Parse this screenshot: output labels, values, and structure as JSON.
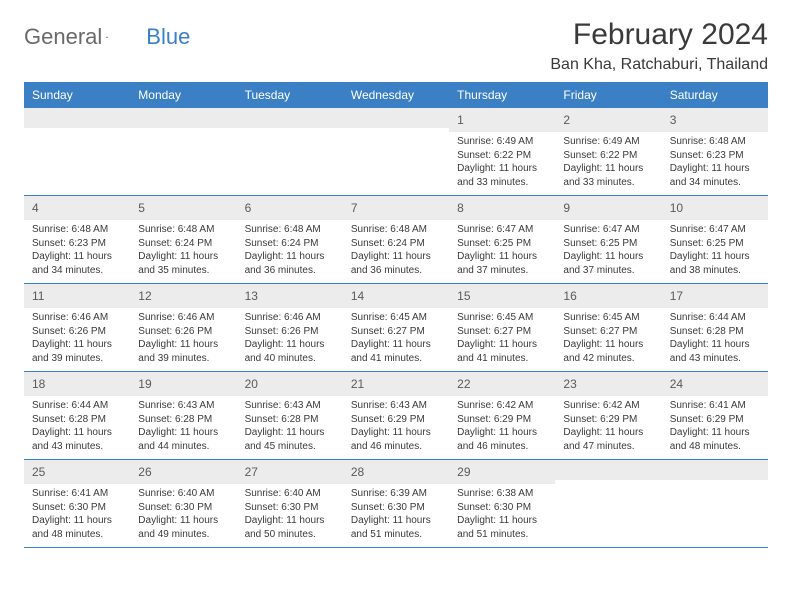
{
  "brand": {
    "name_part1": "General",
    "name_part2": "Blue"
  },
  "title": "February 2024",
  "location": "Ban Kha, Ratchaburi, Thailand",
  "colors": {
    "header_bg": "#3b7fc4",
    "header_text": "#ffffff",
    "daynum_bg": "#ececec",
    "border": "#3b7fc4",
    "text": "#3a3a3a",
    "logo_gray": "#6a6a6a",
    "logo_blue": "#3b7fc4"
  },
  "day_names": [
    "Sunday",
    "Monday",
    "Tuesday",
    "Wednesday",
    "Thursday",
    "Friday",
    "Saturday"
  ],
  "weeks": [
    [
      {
        "empty": true
      },
      {
        "empty": true
      },
      {
        "empty": true
      },
      {
        "empty": true
      },
      {
        "day": "1",
        "sunrise": "Sunrise: 6:49 AM",
        "sunset": "Sunset: 6:22 PM",
        "daylight1": "Daylight: 11 hours",
        "daylight2": "and 33 minutes."
      },
      {
        "day": "2",
        "sunrise": "Sunrise: 6:49 AM",
        "sunset": "Sunset: 6:22 PM",
        "daylight1": "Daylight: 11 hours",
        "daylight2": "and 33 minutes."
      },
      {
        "day": "3",
        "sunrise": "Sunrise: 6:48 AM",
        "sunset": "Sunset: 6:23 PM",
        "daylight1": "Daylight: 11 hours",
        "daylight2": "and 34 minutes."
      }
    ],
    [
      {
        "day": "4",
        "sunrise": "Sunrise: 6:48 AM",
        "sunset": "Sunset: 6:23 PM",
        "daylight1": "Daylight: 11 hours",
        "daylight2": "and 34 minutes."
      },
      {
        "day": "5",
        "sunrise": "Sunrise: 6:48 AM",
        "sunset": "Sunset: 6:24 PM",
        "daylight1": "Daylight: 11 hours",
        "daylight2": "and 35 minutes."
      },
      {
        "day": "6",
        "sunrise": "Sunrise: 6:48 AM",
        "sunset": "Sunset: 6:24 PM",
        "daylight1": "Daylight: 11 hours",
        "daylight2": "and 36 minutes."
      },
      {
        "day": "7",
        "sunrise": "Sunrise: 6:48 AM",
        "sunset": "Sunset: 6:24 PM",
        "daylight1": "Daylight: 11 hours",
        "daylight2": "and 36 minutes."
      },
      {
        "day": "8",
        "sunrise": "Sunrise: 6:47 AM",
        "sunset": "Sunset: 6:25 PM",
        "daylight1": "Daylight: 11 hours",
        "daylight2": "and 37 minutes."
      },
      {
        "day": "9",
        "sunrise": "Sunrise: 6:47 AM",
        "sunset": "Sunset: 6:25 PM",
        "daylight1": "Daylight: 11 hours",
        "daylight2": "and 37 minutes."
      },
      {
        "day": "10",
        "sunrise": "Sunrise: 6:47 AM",
        "sunset": "Sunset: 6:25 PM",
        "daylight1": "Daylight: 11 hours",
        "daylight2": "and 38 minutes."
      }
    ],
    [
      {
        "day": "11",
        "sunrise": "Sunrise: 6:46 AM",
        "sunset": "Sunset: 6:26 PM",
        "daylight1": "Daylight: 11 hours",
        "daylight2": "and 39 minutes."
      },
      {
        "day": "12",
        "sunrise": "Sunrise: 6:46 AM",
        "sunset": "Sunset: 6:26 PM",
        "daylight1": "Daylight: 11 hours",
        "daylight2": "and 39 minutes."
      },
      {
        "day": "13",
        "sunrise": "Sunrise: 6:46 AM",
        "sunset": "Sunset: 6:26 PM",
        "daylight1": "Daylight: 11 hours",
        "daylight2": "and 40 minutes."
      },
      {
        "day": "14",
        "sunrise": "Sunrise: 6:45 AM",
        "sunset": "Sunset: 6:27 PM",
        "daylight1": "Daylight: 11 hours",
        "daylight2": "and 41 minutes."
      },
      {
        "day": "15",
        "sunrise": "Sunrise: 6:45 AM",
        "sunset": "Sunset: 6:27 PM",
        "daylight1": "Daylight: 11 hours",
        "daylight2": "and 41 minutes."
      },
      {
        "day": "16",
        "sunrise": "Sunrise: 6:45 AM",
        "sunset": "Sunset: 6:27 PM",
        "daylight1": "Daylight: 11 hours",
        "daylight2": "and 42 minutes."
      },
      {
        "day": "17",
        "sunrise": "Sunrise: 6:44 AM",
        "sunset": "Sunset: 6:28 PM",
        "daylight1": "Daylight: 11 hours",
        "daylight2": "and 43 minutes."
      }
    ],
    [
      {
        "day": "18",
        "sunrise": "Sunrise: 6:44 AM",
        "sunset": "Sunset: 6:28 PM",
        "daylight1": "Daylight: 11 hours",
        "daylight2": "and 43 minutes."
      },
      {
        "day": "19",
        "sunrise": "Sunrise: 6:43 AM",
        "sunset": "Sunset: 6:28 PM",
        "daylight1": "Daylight: 11 hours",
        "daylight2": "and 44 minutes."
      },
      {
        "day": "20",
        "sunrise": "Sunrise: 6:43 AM",
        "sunset": "Sunset: 6:28 PM",
        "daylight1": "Daylight: 11 hours",
        "daylight2": "and 45 minutes."
      },
      {
        "day": "21",
        "sunrise": "Sunrise: 6:43 AM",
        "sunset": "Sunset: 6:29 PM",
        "daylight1": "Daylight: 11 hours",
        "daylight2": "and 46 minutes."
      },
      {
        "day": "22",
        "sunrise": "Sunrise: 6:42 AM",
        "sunset": "Sunset: 6:29 PM",
        "daylight1": "Daylight: 11 hours",
        "daylight2": "and 46 minutes."
      },
      {
        "day": "23",
        "sunrise": "Sunrise: 6:42 AM",
        "sunset": "Sunset: 6:29 PM",
        "daylight1": "Daylight: 11 hours",
        "daylight2": "and 47 minutes."
      },
      {
        "day": "24",
        "sunrise": "Sunrise: 6:41 AM",
        "sunset": "Sunset: 6:29 PM",
        "daylight1": "Daylight: 11 hours",
        "daylight2": "and 48 minutes."
      }
    ],
    [
      {
        "day": "25",
        "sunrise": "Sunrise: 6:41 AM",
        "sunset": "Sunset: 6:30 PM",
        "daylight1": "Daylight: 11 hours",
        "daylight2": "and 48 minutes."
      },
      {
        "day": "26",
        "sunrise": "Sunrise: 6:40 AM",
        "sunset": "Sunset: 6:30 PM",
        "daylight1": "Daylight: 11 hours",
        "daylight2": "and 49 minutes."
      },
      {
        "day": "27",
        "sunrise": "Sunrise: 6:40 AM",
        "sunset": "Sunset: 6:30 PM",
        "daylight1": "Daylight: 11 hours",
        "daylight2": "and 50 minutes."
      },
      {
        "day": "28",
        "sunrise": "Sunrise: 6:39 AM",
        "sunset": "Sunset: 6:30 PM",
        "daylight1": "Daylight: 11 hours",
        "daylight2": "and 51 minutes."
      },
      {
        "day": "29",
        "sunrise": "Sunrise: 6:38 AM",
        "sunset": "Sunset: 6:30 PM",
        "daylight1": "Daylight: 11 hours",
        "daylight2": "and 51 minutes."
      },
      {
        "empty": true
      },
      {
        "empty": true
      }
    ]
  ]
}
